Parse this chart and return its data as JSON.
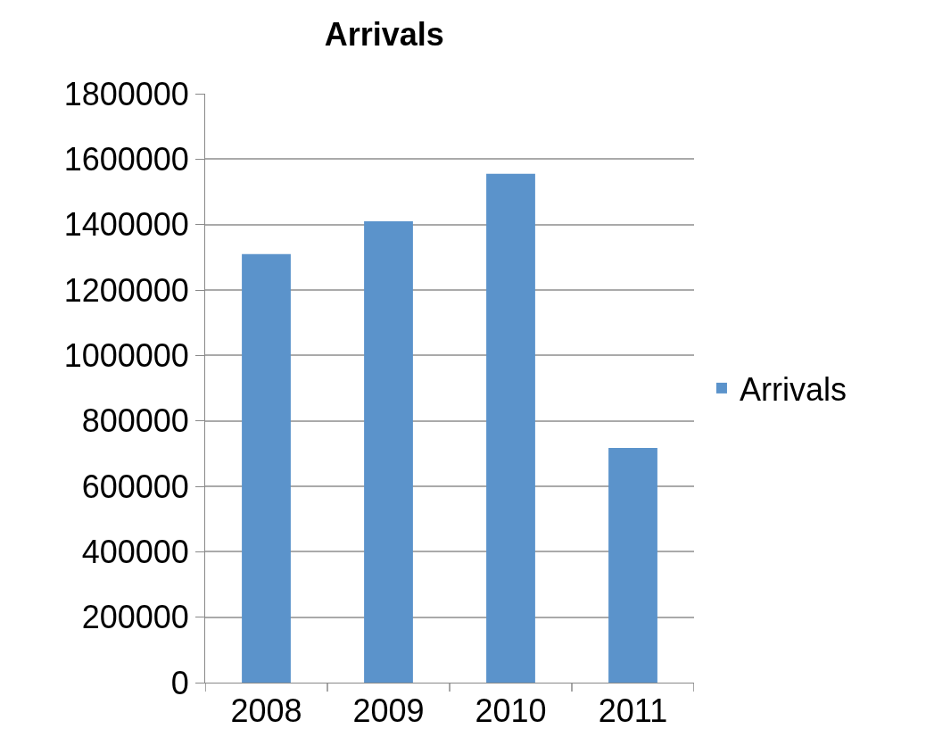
{
  "chart_data": {
    "type": "bar",
    "title": "Arrivals",
    "categories": [
      "2008",
      "2009",
      "2010",
      "2011"
    ],
    "series": [
      {
        "name": "Arrivals",
        "color": "#5b93cb",
        "values": [
          1310000,
          1410000,
          1555000,
          717000
        ]
      }
    ],
    "ylim": [
      0,
      1800000
    ],
    "yticks": [
      0,
      200000,
      400000,
      600000,
      800000,
      1000000,
      1200000,
      1400000,
      1600000,
      1800000
    ],
    "grid": "y",
    "legend": "right"
  }
}
